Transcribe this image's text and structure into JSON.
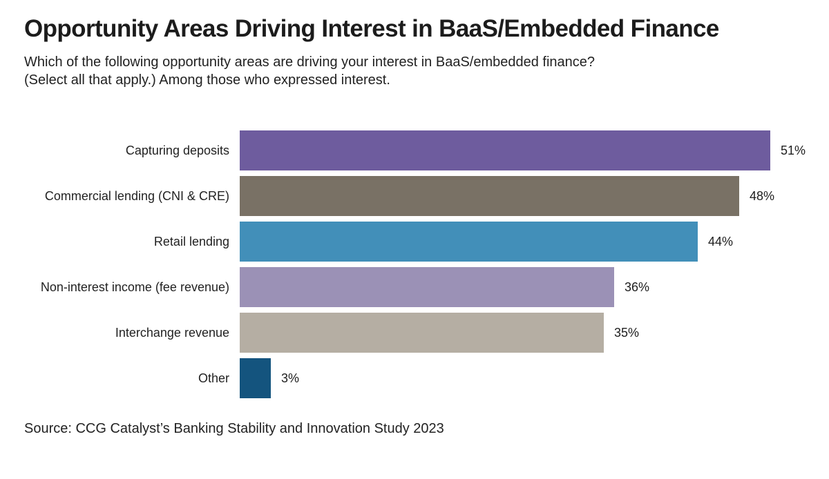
{
  "chart_data": {
    "type": "bar",
    "orientation": "horizontal",
    "title": "Opportunity Areas Driving Interest in BaaS/Embedded Finance",
    "subtitle_line1": "Which of the following opportunity areas are driving your interest in BaaS/embedded finance?",
    "subtitle_line2": "(Select all that apply.) Among those who expressed interest.",
    "source": "Source: CCG Catalyst’s Banking Stability and Innovation Study 2023",
    "categories": [
      "Capturing deposits",
      "Commercial lending (CNI & CRE)",
      "Retail lending",
      "Non-interest income (fee revenue)",
      "Interchange revenue",
      "Other"
    ],
    "values": [
      51,
      48,
      44,
      36,
      35,
      3
    ],
    "value_labels": [
      "51%",
      "48%",
      "44%",
      "36%",
      "35%",
      "3%"
    ],
    "bar_colors": [
      "#6e5c9e",
      "#797165",
      "#428fb9",
      "#9b91b6",
      "#b5aea3",
      "#14547e"
    ],
    "xlim": [
      0,
      56.8
    ],
    "grid": false,
    "legend": false,
    "background_color": "#ffffff",
    "text_color": "#1e1e1e"
  }
}
